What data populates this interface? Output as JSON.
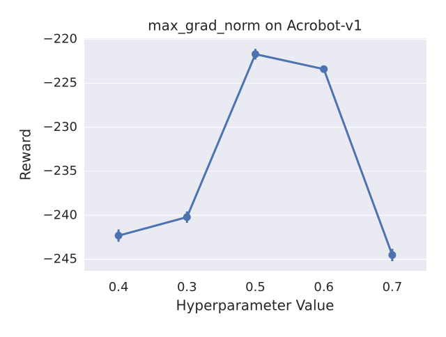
{
  "chart_data": {
    "type": "pointplot",
    "title": "max_grad_norm on Acrobot-v1",
    "x_label": "Hyperparameter Value",
    "y_label": "Reward",
    "categories": [
      "0.4",
      "0.3",
      "0.5",
      "0.6",
      "0.7"
    ],
    "series": [
      {
        "name": "Reward",
        "color": "#4c72b0",
        "values": [
          -242.3,
          -240.2,
          -221.7,
          -223.4,
          -244.5
        ],
        "errors": [
          0.7,
          0.65,
          0.6,
          0.4,
          0.7
        ]
      }
    ],
    "ylim": [
      -246.3,
      -219.9
    ],
    "yticks": [
      {
        "value": -220,
        "label": "−220"
      },
      {
        "value": -225,
        "label": "−225"
      },
      {
        "value": -230,
        "label": "−230"
      },
      {
        "value": -235,
        "label": "−235"
      },
      {
        "value": -240,
        "label": "−240"
      },
      {
        "value": -245,
        "label": "−245"
      }
    ],
    "grid": true,
    "background": "#eaeaf2"
  }
}
